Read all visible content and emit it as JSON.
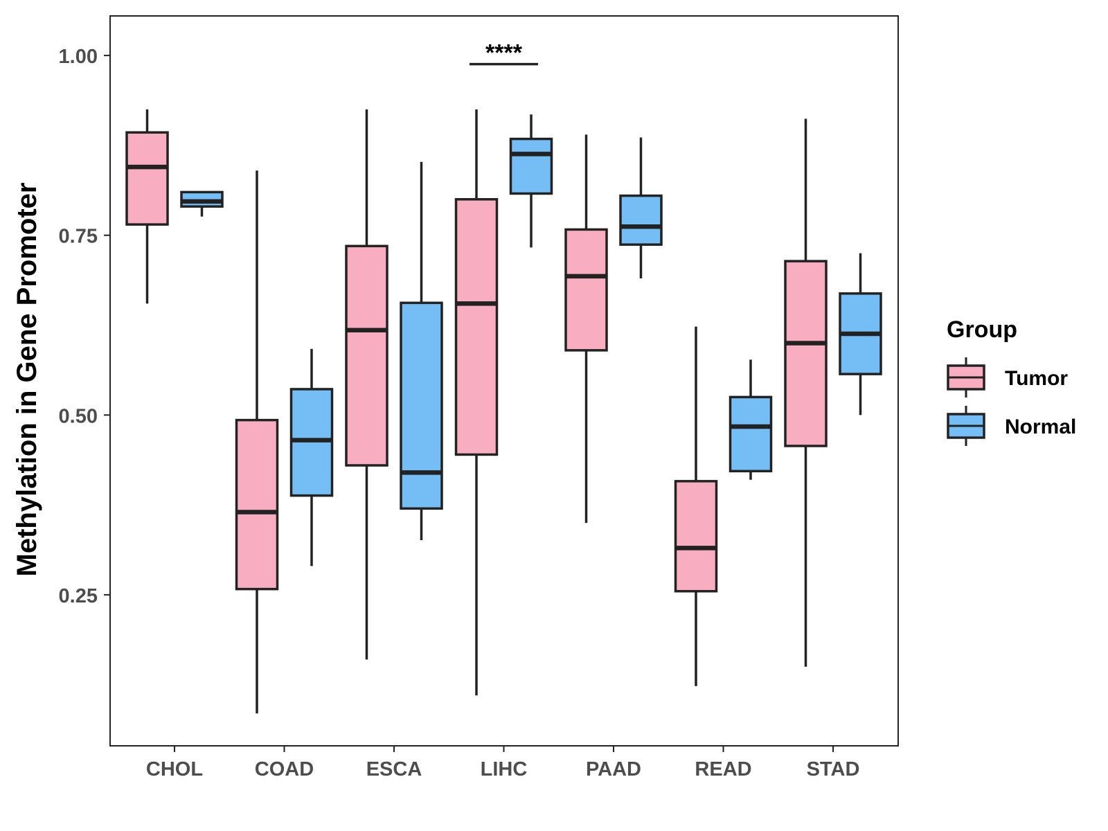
{
  "chart_data": {
    "type": "boxplot",
    "title": "",
    "xlabel": "",
    "ylabel": "Methylation in Gene Promoter",
    "ylim": [
      0.04,
      1.055
    ],
    "yticks": [
      0.25,
      0.5,
      0.75,
      1.0
    ],
    "ytick_labels": [
      "0.25",
      "0.50",
      "0.75",
      "1.00"
    ],
    "grid": false,
    "categories": [
      "CHOL",
      "COAD",
      "ESCA",
      "LIHC",
      "PAAD",
      "READ",
      "STAD"
    ],
    "legend": {
      "title": "Group",
      "position": "right",
      "entries": [
        "Tumor",
        "Normal"
      ]
    },
    "colors": {
      "Tumor": "#f9adc0",
      "Normal": "#74bdf5",
      "stroke": "#222222"
    },
    "series": [
      {
        "name": "Tumor",
        "boxes": [
          {
            "category": "CHOL",
            "min": 0.655,
            "q1": 0.765,
            "median": 0.845,
            "q3": 0.893,
            "max": 0.925
          },
          {
            "category": "COAD",
            "min": 0.085,
            "q1": 0.258,
            "median": 0.365,
            "q3": 0.493,
            "max": 0.84
          },
          {
            "category": "ESCA",
            "min": 0.16,
            "q1": 0.43,
            "median": 0.618,
            "q3": 0.735,
            "max": 0.925
          },
          {
            "category": "LIHC",
            "min": 0.11,
            "q1": 0.445,
            "median": 0.655,
            "q3": 0.8,
            "max": 0.925
          },
          {
            "category": "PAAD",
            "min": 0.35,
            "q1": 0.59,
            "median": 0.693,
            "q3": 0.758,
            "max": 0.89
          },
          {
            "category": "READ",
            "min": 0.123,
            "q1": 0.255,
            "median": 0.315,
            "q3": 0.408,
            "max": 0.623
          },
          {
            "category": "STAD",
            "min": 0.15,
            "q1": 0.457,
            "median": 0.6,
            "q3": 0.714,
            "max": 0.912
          }
        ]
      },
      {
        "name": "Normal",
        "boxes": [
          {
            "category": "CHOL",
            "min": 0.776,
            "q1": 0.79,
            "median": 0.797,
            "q3": 0.81,
            "max": 0.81
          },
          {
            "category": "COAD",
            "min": 0.29,
            "q1": 0.388,
            "median": 0.465,
            "q3": 0.536,
            "max": 0.592
          },
          {
            "category": "ESCA",
            "min": 0.326,
            "q1": 0.37,
            "median": 0.42,
            "q3": 0.656,
            "max": 0.852
          },
          {
            "category": "LIHC",
            "min": 0.733,
            "q1": 0.808,
            "median": 0.863,
            "q3": 0.884,
            "max": 0.918
          },
          {
            "category": "PAAD",
            "min": 0.69,
            "q1": 0.737,
            "median": 0.762,
            "q3": 0.805,
            "max": 0.886
          },
          {
            "category": "READ",
            "min": 0.41,
            "q1": 0.422,
            "median": 0.484,
            "q3": 0.525,
            "max": 0.577
          },
          {
            "category": "STAD",
            "min": 0.5,
            "q1": 0.557,
            "median": 0.613,
            "q3": 0.669,
            "max": 0.725
          }
        ]
      }
    ],
    "annotations": [
      {
        "text": "****",
        "category": "LIHC",
        "y_bracket": 0.988,
        "y_text": 0.993
      }
    ]
  }
}
